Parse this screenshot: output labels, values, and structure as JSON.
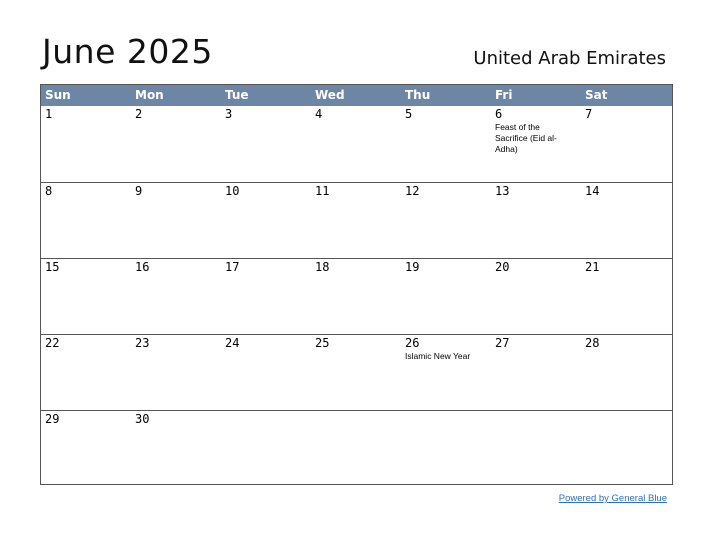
{
  "header": {
    "title": "June 2025",
    "country": "United Arab Emirates"
  },
  "weekdays": [
    "Sun",
    "Mon",
    "Tue",
    "Wed",
    "Thu",
    "Fri",
    "Sat"
  ],
  "weeks": [
    [
      {
        "day": "1",
        "holiday": ""
      },
      {
        "day": "2",
        "holiday": ""
      },
      {
        "day": "3",
        "holiday": ""
      },
      {
        "day": "4",
        "holiday": ""
      },
      {
        "day": "5",
        "holiday": ""
      },
      {
        "day": "6",
        "holiday": "Feast of the Sacrifice (Eid al-Adha)"
      },
      {
        "day": "7",
        "holiday": ""
      }
    ],
    [
      {
        "day": "8",
        "holiday": ""
      },
      {
        "day": "9",
        "holiday": ""
      },
      {
        "day": "10",
        "holiday": ""
      },
      {
        "day": "11",
        "holiday": ""
      },
      {
        "day": "12",
        "holiday": ""
      },
      {
        "day": "13",
        "holiday": ""
      },
      {
        "day": "14",
        "holiday": ""
      }
    ],
    [
      {
        "day": "15",
        "holiday": ""
      },
      {
        "day": "16",
        "holiday": ""
      },
      {
        "day": "17",
        "holiday": ""
      },
      {
        "day": "18",
        "holiday": ""
      },
      {
        "day": "19",
        "holiday": ""
      },
      {
        "day": "20",
        "holiday": ""
      },
      {
        "day": "21",
        "holiday": ""
      }
    ],
    [
      {
        "day": "22",
        "holiday": ""
      },
      {
        "day": "23",
        "holiday": ""
      },
      {
        "day": "24",
        "holiday": ""
      },
      {
        "day": "25",
        "holiday": ""
      },
      {
        "day": "26",
        "holiday": "Islamic New Year"
      },
      {
        "day": "27",
        "holiday": ""
      },
      {
        "day": "28",
        "holiday": ""
      }
    ],
    [
      {
        "day": "29",
        "holiday": ""
      },
      {
        "day": "30",
        "holiday": ""
      },
      {
        "day": "",
        "holiday": ""
      },
      {
        "day": "",
        "holiday": ""
      },
      {
        "day": "",
        "holiday": ""
      },
      {
        "day": "",
        "holiday": ""
      },
      {
        "day": "",
        "holiday": ""
      }
    ]
  ],
  "footer": {
    "powered_by": "Powered by General Blue"
  },
  "colors": {
    "header_bg": "#6e86a6",
    "link": "#2a6fcf"
  }
}
